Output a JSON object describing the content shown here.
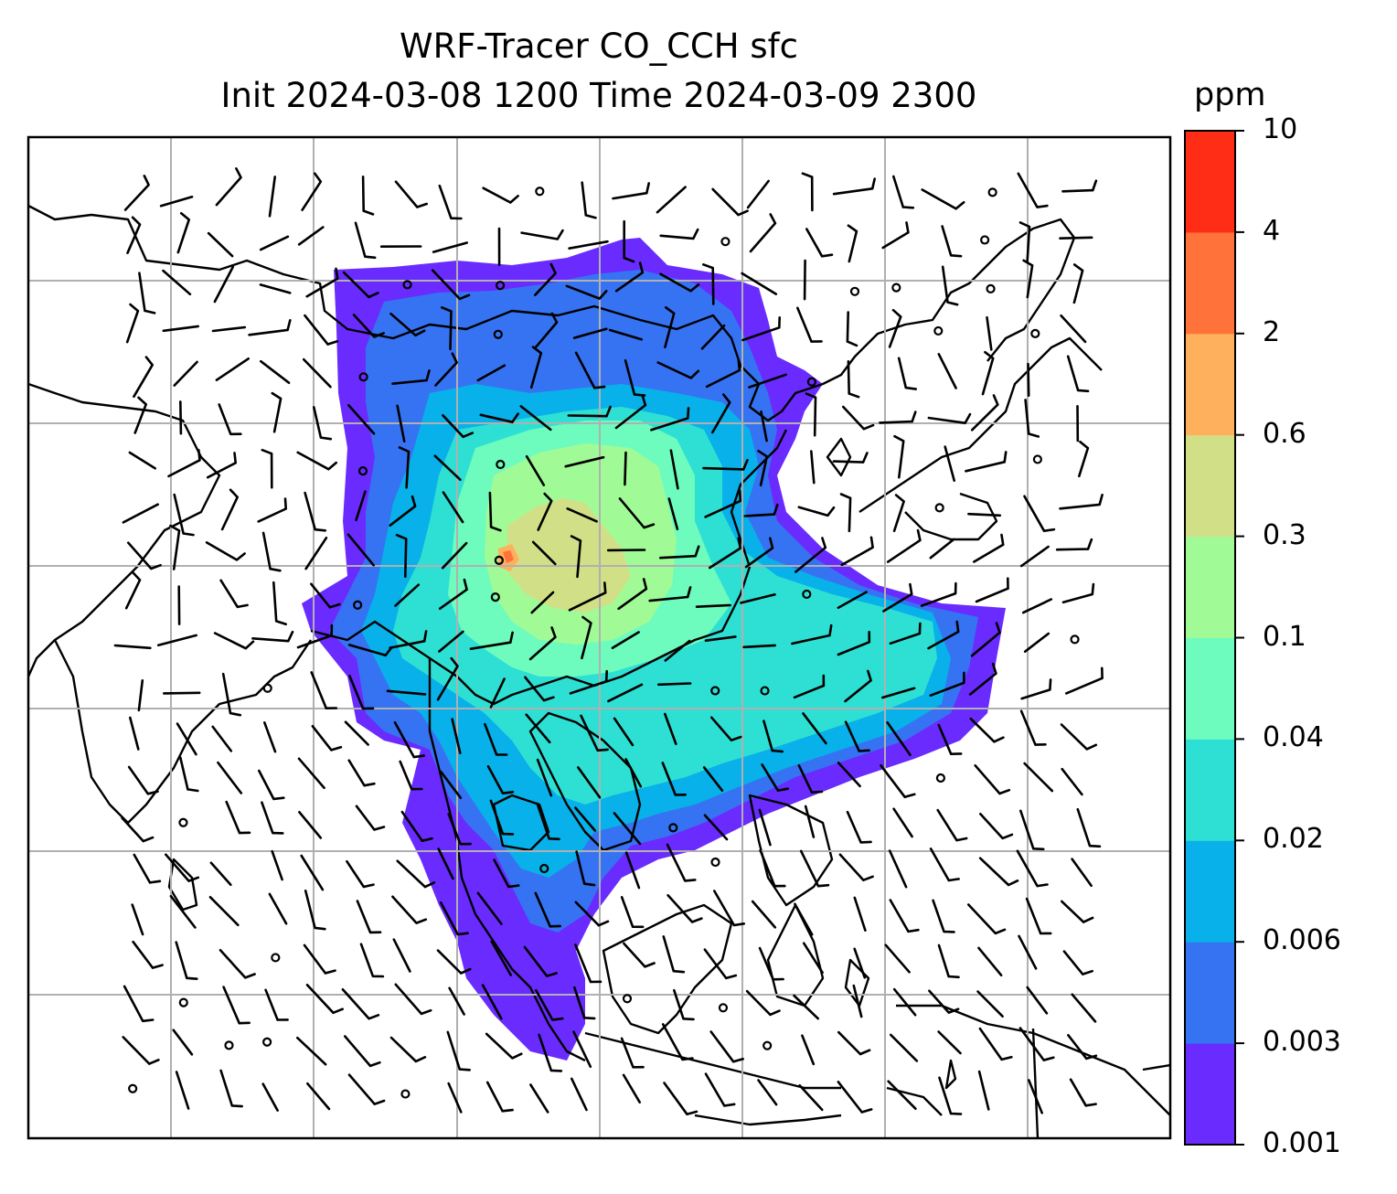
{
  "title": {
    "line1": "WRF-Tracer CO_CCH sfc",
    "line2": "Init 2024-03-08 1200 Time 2024-03-09 2300"
  },
  "colorbar": {
    "unit": "ppm",
    "levels": [
      "0.001",
      "0.003",
      "0.006",
      "0.02",
      "0.04",
      "0.1",
      "0.3",
      "0.6",
      "2",
      "4",
      "10"
    ],
    "colors": [
      "#6a2bff",
      "#3673f2",
      "#08b1e9",
      "#2ee0d4",
      "#6dfcbd",
      "#a0fb97",
      "#d1e086",
      "#ffb05d",
      "#ff7239",
      "#ff2d16"
    ]
  },
  "map": {
    "gridlines": "on",
    "gridline_color": "#b0b0b0",
    "field": "CO_CCH surface tracer concentration",
    "overlay": "wind barbs"
  }
}
